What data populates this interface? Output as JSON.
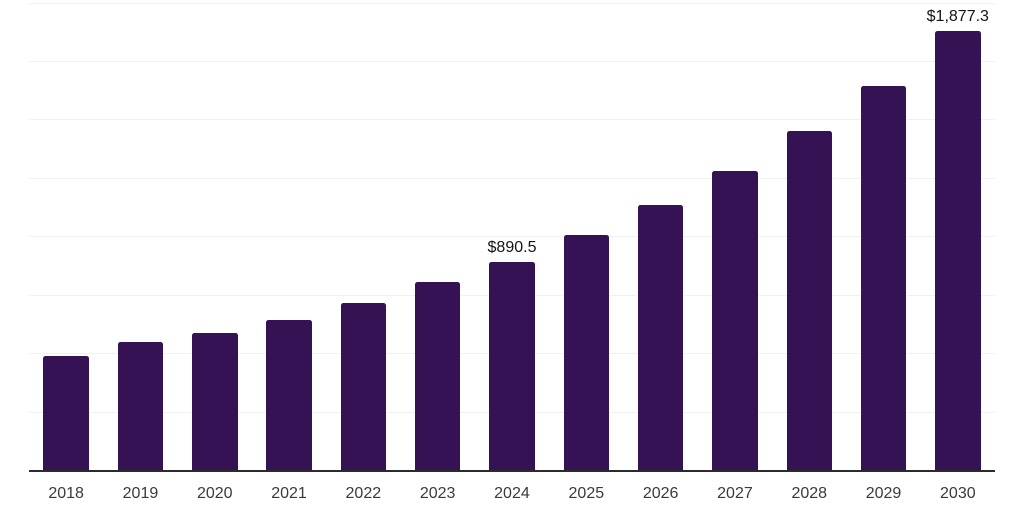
{
  "colors": {
    "bar": "#351253",
    "grid": "#f1f1f1",
    "axis": "#2b2b2b",
    "year_label": "#3a3a3a",
    "data_label": "#141414",
    "background": "#ffffff"
  },
  "chart_data": {
    "type": "bar",
    "title": "",
    "xlabel": "",
    "ylabel": "",
    "categories": [
      "2018",
      "2019",
      "2020",
      "2021",
      "2022",
      "2023",
      "2024",
      "2025",
      "2026",
      "2027",
      "2028",
      "2029",
      "2030"
    ],
    "values": [
      488,
      547,
      585,
      642,
      713,
      805,
      890.5,
      1005,
      1133,
      1278,
      1450,
      1645,
      1877.3
    ],
    "point_labels": [
      "",
      "",
      "",
      "",
      "",
      "",
      "$890.5",
      "",
      "",
      "",
      "",
      "",
      "$1,877.3"
    ],
    "ylim": [
      0,
      2000
    ],
    "gridline_interval": 250,
    "grid": true,
    "legend": false,
    "y_tick_labels_visible": false
  }
}
